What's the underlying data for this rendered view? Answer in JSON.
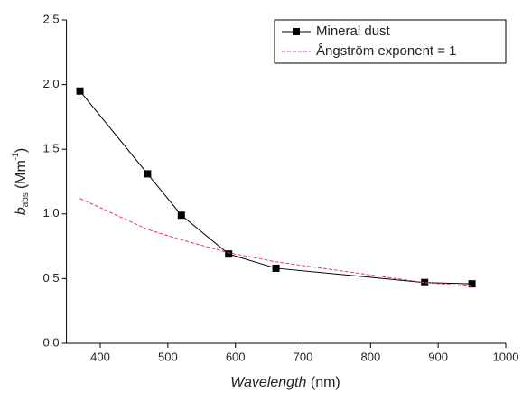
{
  "chart_data": {
    "type": "line",
    "x_label": [
      "Wavelength",
      "(nm)"
    ],
    "y_label": [
      "b",
      "abs",
      "(Mm",
      "-1",
      ")"
    ],
    "xlim": [
      350,
      1000
    ],
    "xticks": [
      400,
      500,
      600,
      700,
      800,
      900,
      1000
    ],
    "ylim": [
      0,
      2.5
    ],
    "yticks": [
      {
        "value": 0,
        "label": "0.0"
      },
      0.5,
      {
        "value": 1,
        "label": "1.0"
      },
      1.5,
      {
        "value": 2,
        "label": "2.0"
      },
      2.5
    ],
    "legend": "upper right",
    "series": [
      {
        "name": "Mineral dust",
        "color": "#000000",
        "style": "solid-square",
        "x": [
          370,
          470,
          520,
          590,
          660,
          880,
          950
        ],
        "values": [
          1.95,
          1.31,
          0.99,
          0.69,
          0.58,
          0.47,
          0.46
        ]
      },
      {
        "name": "Ångström exponent = 1",
        "color": "#e8336e",
        "style": "dashed",
        "x": [
          370,
          470,
          520,
          590,
          660,
          880,
          950
        ],
        "values": [
          1.12,
          0.88,
          0.8,
          0.7,
          0.63,
          0.47,
          0.44
        ]
      }
    ]
  }
}
